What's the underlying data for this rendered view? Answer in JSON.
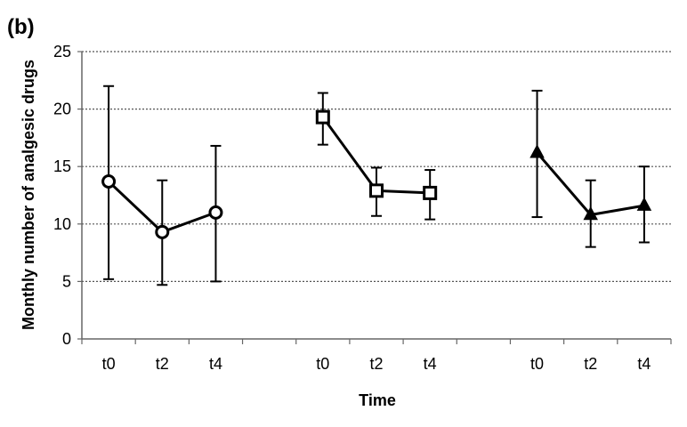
{
  "panel_label": "(b)",
  "chart_data": {
    "type": "line",
    "xlabel": "Time",
    "ylabel": "Monthly number of analgesic drugs",
    "ylim": [
      0,
      25
    ],
    "yticks": [
      0,
      5,
      10,
      15,
      20,
      25
    ],
    "grid": "horizontal dotted",
    "legend": "none",
    "groups": [
      {
        "marker": "circle",
        "categories": [
          "t0",
          "t2",
          "t4"
        ],
        "values": [
          13.7,
          9.3,
          11.0
        ],
        "error_low": [
          5.2,
          4.7,
          5.0
        ],
        "error_high": [
          22.0,
          13.8,
          16.8
        ]
      },
      {
        "marker": "square",
        "categories": [
          "t0",
          "t2",
          "t4"
        ],
        "values": [
          19.3,
          12.9,
          12.7
        ],
        "error_low": [
          16.9,
          10.7,
          10.4
        ],
        "error_high": [
          21.4,
          14.9,
          14.7
        ]
      },
      {
        "marker": "triangle",
        "categories": [
          "t0",
          "t2",
          "t4"
        ],
        "values": [
          16.2,
          10.8,
          11.6
        ],
        "error_low": [
          10.6,
          8.0,
          8.4
        ],
        "error_high": [
          21.6,
          13.8,
          15.0
        ]
      }
    ]
  }
}
